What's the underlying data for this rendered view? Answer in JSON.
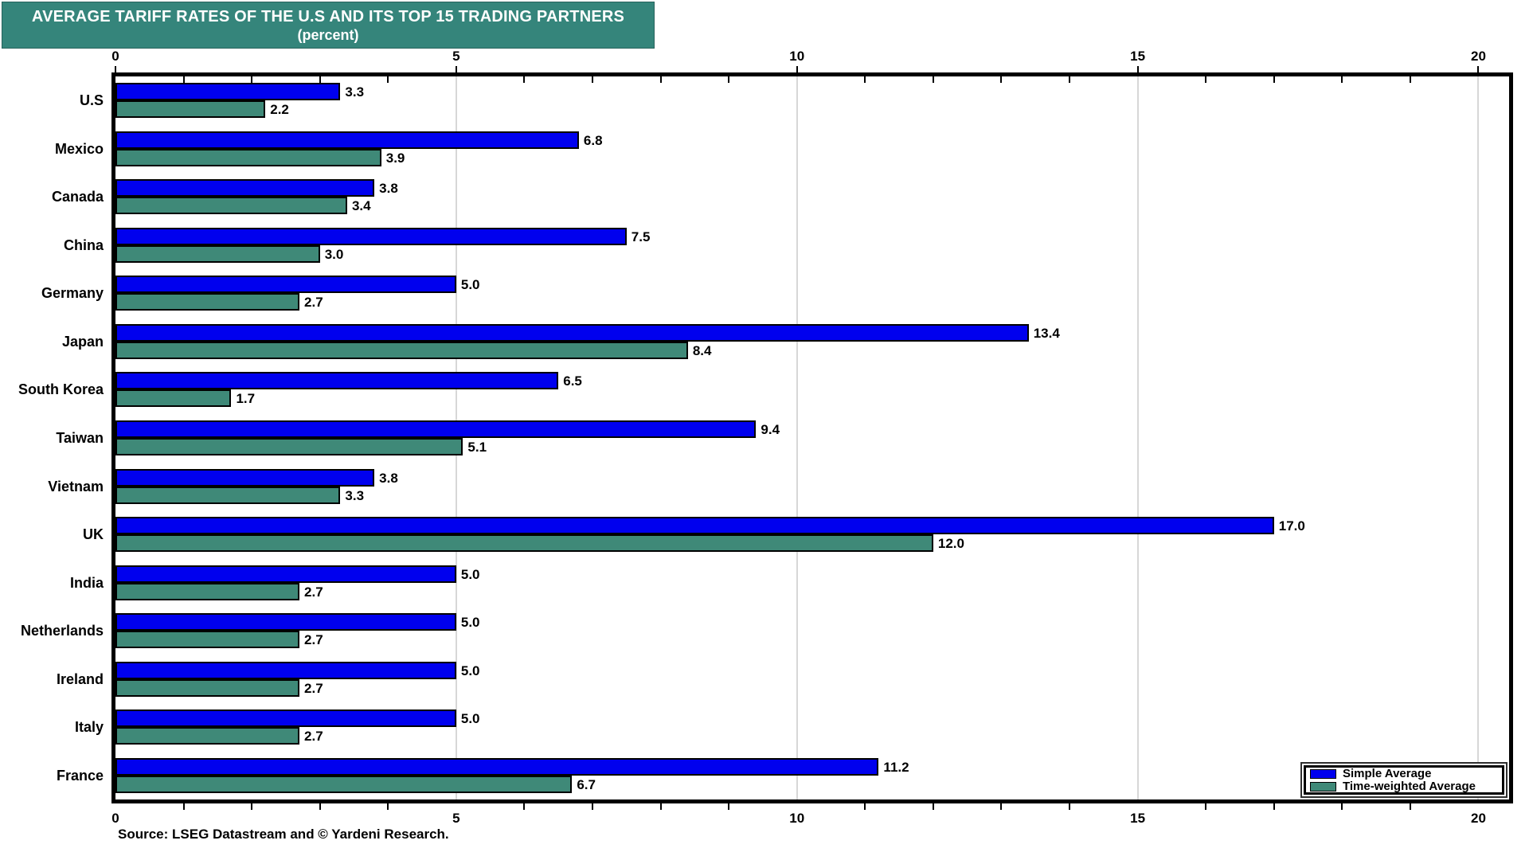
{
  "title": {
    "line1": "AVERAGE TARIFF RATES OF THE U.S AND ITS TOP 15 TRADING PARTNERS",
    "line2": "(percent)"
  },
  "source": "Source: LSEG Datastream and © Yardeni Research.",
  "colors": {
    "title_bg": "#35857B",
    "simple_average": "#0000EE",
    "time_weighted_average": "#3F8978",
    "gridline": "#D7D7D7",
    "axis": "#000000",
    "title_text": "#FFFFFF"
  },
  "legend": {
    "entries": [
      {
        "label": "Simple Average",
        "color_key": "simple_average"
      },
      {
        "label": "Time-weighted Average",
        "color_key": "time_weighted_average"
      }
    ],
    "position": "bottom-right"
  },
  "chart_data": {
    "type": "bar",
    "orientation": "horizontal",
    "title": "AVERAGE TARIFF RATES OF THE U.S AND ITS TOP 15 TRADING PARTNERS (percent)",
    "categories": [
      "U.S",
      "Mexico",
      "Canada",
      "China",
      "Germany",
      "Japan",
      "South Korea",
      "Taiwan",
      "Vietnam",
      "UK",
      "India",
      "Netherlands",
      "Ireland",
      "Italy",
      "France"
    ],
    "series": [
      {
        "name": "Simple Average",
        "values": [
          3.3,
          6.8,
          3.8,
          7.5,
          5.0,
          13.4,
          6.5,
          9.4,
          3.8,
          17.0,
          5.0,
          5.0,
          5.0,
          5.0,
          11.2
        ]
      },
      {
        "name": "Time-weighted Average",
        "values": [
          2.2,
          3.9,
          3.4,
          3.0,
          2.7,
          8.4,
          1.7,
          5.1,
          3.3,
          12.0,
          2.7,
          2.7,
          2.7,
          2.7,
          6.7
        ]
      }
    ],
    "value_label_format": "one_decimal",
    "xlim": [
      0,
      20.45
    ],
    "xticks_major": [
      0,
      5,
      10,
      15,
      20
    ],
    "minor_tick_interval": 1,
    "grid": "vertical gridlines at 5, 10, 15, 20",
    "axis_labels_positions": [
      "top",
      "bottom"
    ],
    "legend_position": "bottom-right"
  }
}
